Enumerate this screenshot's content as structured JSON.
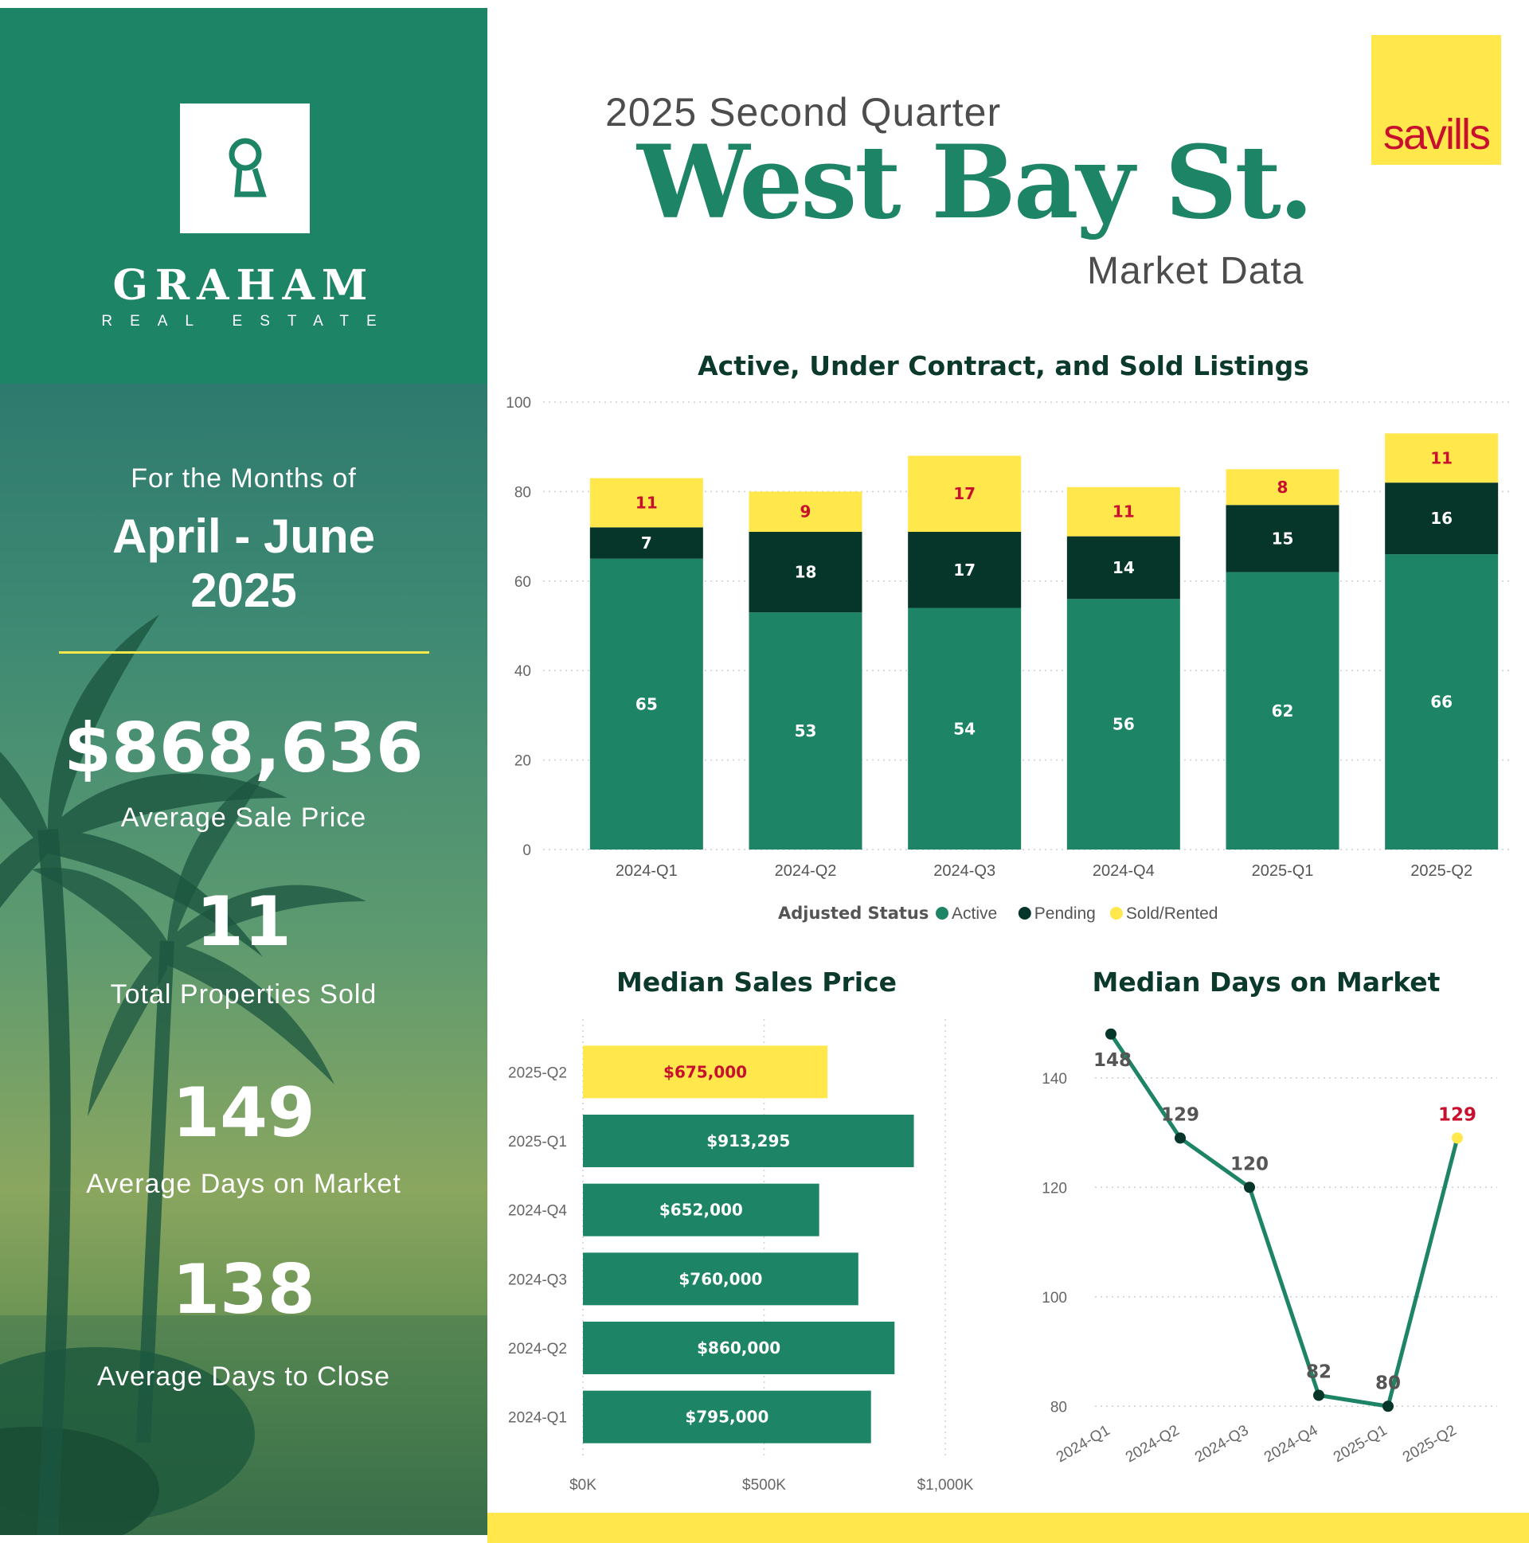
{
  "brand": {
    "name": "GRAHAM",
    "sub": "REAL ESTATE"
  },
  "header": {
    "subtitle_top": "2025 Second Quarter",
    "title": "West Bay St.",
    "subtitle_bottom": "Market Data",
    "partner_logo": "savills"
  },
  "period": {
    "intro": "For the Months of",
    "range_line1": "April - June",
    "range_line2": "2025"
  },
  "stats": [
    {
      "value": "$868,636",
      "label": "Average Sale Price"
    },
    {
      "value": "11",
      "label": "Total Properties Sold"
    },
    {
      "value": "149",
      "label": "Average Days on Market"
    },
    {
      "value": "138",
      "label": "Average Days to Close"
    }
  ],
  "colors": {
    "green": "#1d8466",
    "dark_green": "#06352a",
    "yellow": "#ffe74c",
    "red_label": "#c8102e"
  },
  "chart_data": [
    {
      "type": "bar",
      "stacked": true,
      "title": "Active, Under Contract, and Sold Listings",
      "categories": [
        "2024-Q1",
        "2024-Q2",
        "2024-Q3",
        "2024-Q4",
        "2025-Q1",
        "2025-Q2"
      ],
      "series": [
        {
          "name": "Active",
          "color": "#1d8466",
          "values": [
            65,
            53,
            54,
            56,
            62,
            66
          ]
        },
        {
          "name": "Pending",
          "color": "#06352a",
          "values": [
            7,
            18,
            17,
            14,
            15,
            16
          ]
        },
        {
          "name": "Sold/Rented",
          "color": "#ffe74c",
          "values": [
            11,
            9,
            17,
            11,
            8,
            11
          ]
        }
      ],
      "ylim": [
        0,
        100
      ],
      "yticks": [
        "0",
        "20",
        "40",
        "60",
        "80",
        "100"
      ],
      "legend_title": "Adjusted Status",
      "legend_position": "bottom",
      "grid": true
    },
    {
      "type": "bar",
      "orientation": "horizontal",
      "title": "Median Sales Price",
      "categories": [
        "2025-Q2",
        "2025-Q1",
        "2024-Q4",
        "2024-Q3",
        "2024-Q2",
        "2024-Q1"
      ],
      "values": [
        675000,
        913295,
        652000,
        760000,
        860000,
        795000
      ],
      "labels": [
        "$675,000",
        "$913,295",
        "$652,000",
        "$760,000",
        "$860,000",
        "$795,000"
      ],
      "highlight": "2025-Q2",
      "xlim": [
        0,
        1000000
      ],
      "xticks": [
        "$0K",
        "$500K",
        "$1,000K"
      ],
      "grid": true
    },
    {
      "type": "line",
      "title": "Median Days on Market",
      "x": [
        "2024-Q1",
        "2024-Q2",
        "2024-Q3",
        "2024-Q4",
        "2025-Q1",
        "2025-Q2"
      ],
      "values": [
        148,
        129,
        120,
        82,
        80,
        129
      ],
      "labels": [
        "148",
        "129",
        "120",
        "82",
        "80",
        "129"
      ],
      "highlight": "2025-Q2",
      "ylim": [
        78,
        150
      ],
      "yticks": [
        "80",
        "100",
        "120",
        "140"
      ],
      "grid": true
    }
  ]
}
